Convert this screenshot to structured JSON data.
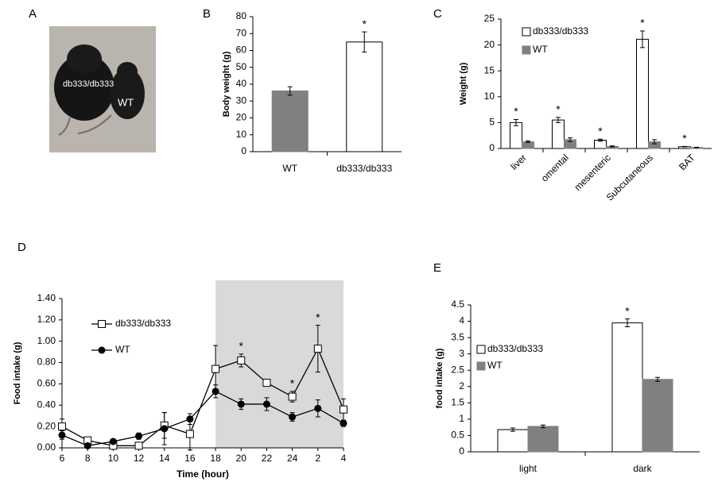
{
  "photo": {
    "label": "A",
    "texts": [
      "db333/db333",
      "WT"
    ]
  },
  "chart_data": [
    {
      "type": "bar",
      "label": "B",
      "ylabel": "Body weight (g)",
      "categories": [
        "WT",
        "db333/db333"
      ],
      "values": [
        36,
        65
      ],
      "errors": [
        2.5,
        6
      ],
      "colors": [
        "#808080",
        "#ffffff"
      ],
      "annotations": [
        null,
        "*"
      ],
      "ylim": [
        0,
        80
      ],
      "yticks": [
        0,
        10,
        20,
        30,
        40,
        50,
        60,
        70,
        80
      ]
    },
    {
      "type": "grouped_bar",
      "label": "C",
      "ylabel": "Weight (g)",
      "categories": [
        "liver",
        "omental",
        "mesenteric",
        "Subcutaneous",
        "BAT"
      ],
      "series": [
        {
          "name": "db333/db333",
          "color": "#ffffff",
          "values": [
            5,
            5.5,
            1.6,
            21.1,
            0.35
          ],
          "errors": [
            0.6,
            0.5,
            0.2,
            1.6,
            0.05
          ]
        },
        {
          "name": "WT",
          "color": "#808080",
          "values": [
            1.3,
            1.7,
            0.4,
            1.3,
            0.2
          ],
          "errors": [
            0.15,
            0.35,
            0.1,
            0.4,
            0.05
          ]
        }
      ],
      "annotations": [
        "*",
        "*",
        "*",
        "*",
        "*"
      ],
      "ylim": [
        0,
        25
      ],
      "yticks": [
        0,
        5,
        10,
        15,
        20,
        25
      ]
    },
    {
      "type": "line",
      "label": "D",
      "ylabel": "Food intake (g)",
      "xlabel": "Time (hour)",
      "categories": [
        "6",
        "8",
        "10",
        "12",
        "14",
        "16",
        "18",
        "20",
        "22",
        "24",
        "2",
        "4"
      ],
      "shade": [
        "18",
        "4"
      ],
      "series": [
        {
          "name": "db333/db333",
          "color": "#000000",
          "marker": "open-square",
          "values": [
            0.2,
            0.07,
            0.02,
            0.02,
            0.21,
            0.13,
            0.74,
            0.82,
            0.61,
            0.48,
            0.93,
            0.36
          ],
          "errors": [
            0.07,
            0.03,
            0.02,
            0.02,
            0.12,
            0.15,
            0.22,
            0.06,
            0.03,
            0.05,
            0.22,
            0.1
          ]
        },
        {
          "name": "WT",
          "color": "#000000",
          "marker": "filled-circle",
          "values": [
            0.12,
            0.02,
            0.06,
            0.11,
            0.18,
            0.27,
            0.53,
            0.41,
            0.41,
            0.29,
            0.37,
            0.23
          ],
          "errors": [
            0.04,
            0.01,
            0.02,
            0.03,
            0.15,
            0.05,
            0.06,
            0.05,
            0.06,
            0.04,
            0.08,
            0.03
          ]
        }
      ],
      "annotations": [
        null,
        null,
        null,
        null,
        null,
        null,
        null,
        "*",
        null,
        "*",
        "*",
        null
      ],
      "ylim": [
        0,
        1.4
      ],
      "yticks": [
        {
          "value": 0,
          "label": "0.00"
        },
        {
          "value": 0.2,
          "label": "0.20"
        },
        {
          "value": 0.4,
          "label": "0.40"
        },
        {
          "value": 0.6,
          "label": "0.60"
        },
        {
          "value": 0.8,
          "label": "0.80"
        },
        {
          "value": 1,
          "label": "1.00"
        },
        {
          "value": 1.2,
          "label": "1.20"
        },
        {
          "value": 1.4,
          "label": "1.40"
        }
      ]
    },
    {
      "type": "grouped_bar",
      "label": "E",
      "ylabel": "food intake (g)",
      "categories": [
        "light",
        "dark"
      ],
      "series": [
        {
          "name": "db333/db333",
          "color": "#ffffff",
          "values": [
            0.68,
            3.95
          ],
          "errors": [
            0.05,
            0.12
          ]
        },
        {
          "name": "WT",
          "color": "#808080",
          "values": [
            0.78,
            2.22
          ],
          "errors": [
            0.04,
            0.06
          ]
        }
      ],
      "annotations": [
        null,
        "*"
      ],
      "ylim": [
        0,
        4.5
      ],
      "yticks": [
        0,
        0.5,
        1,
        1.5,
        2,
        2.5,
        3,
        3.5,
        4,
        4.5
      ]
    }
  ]
}
